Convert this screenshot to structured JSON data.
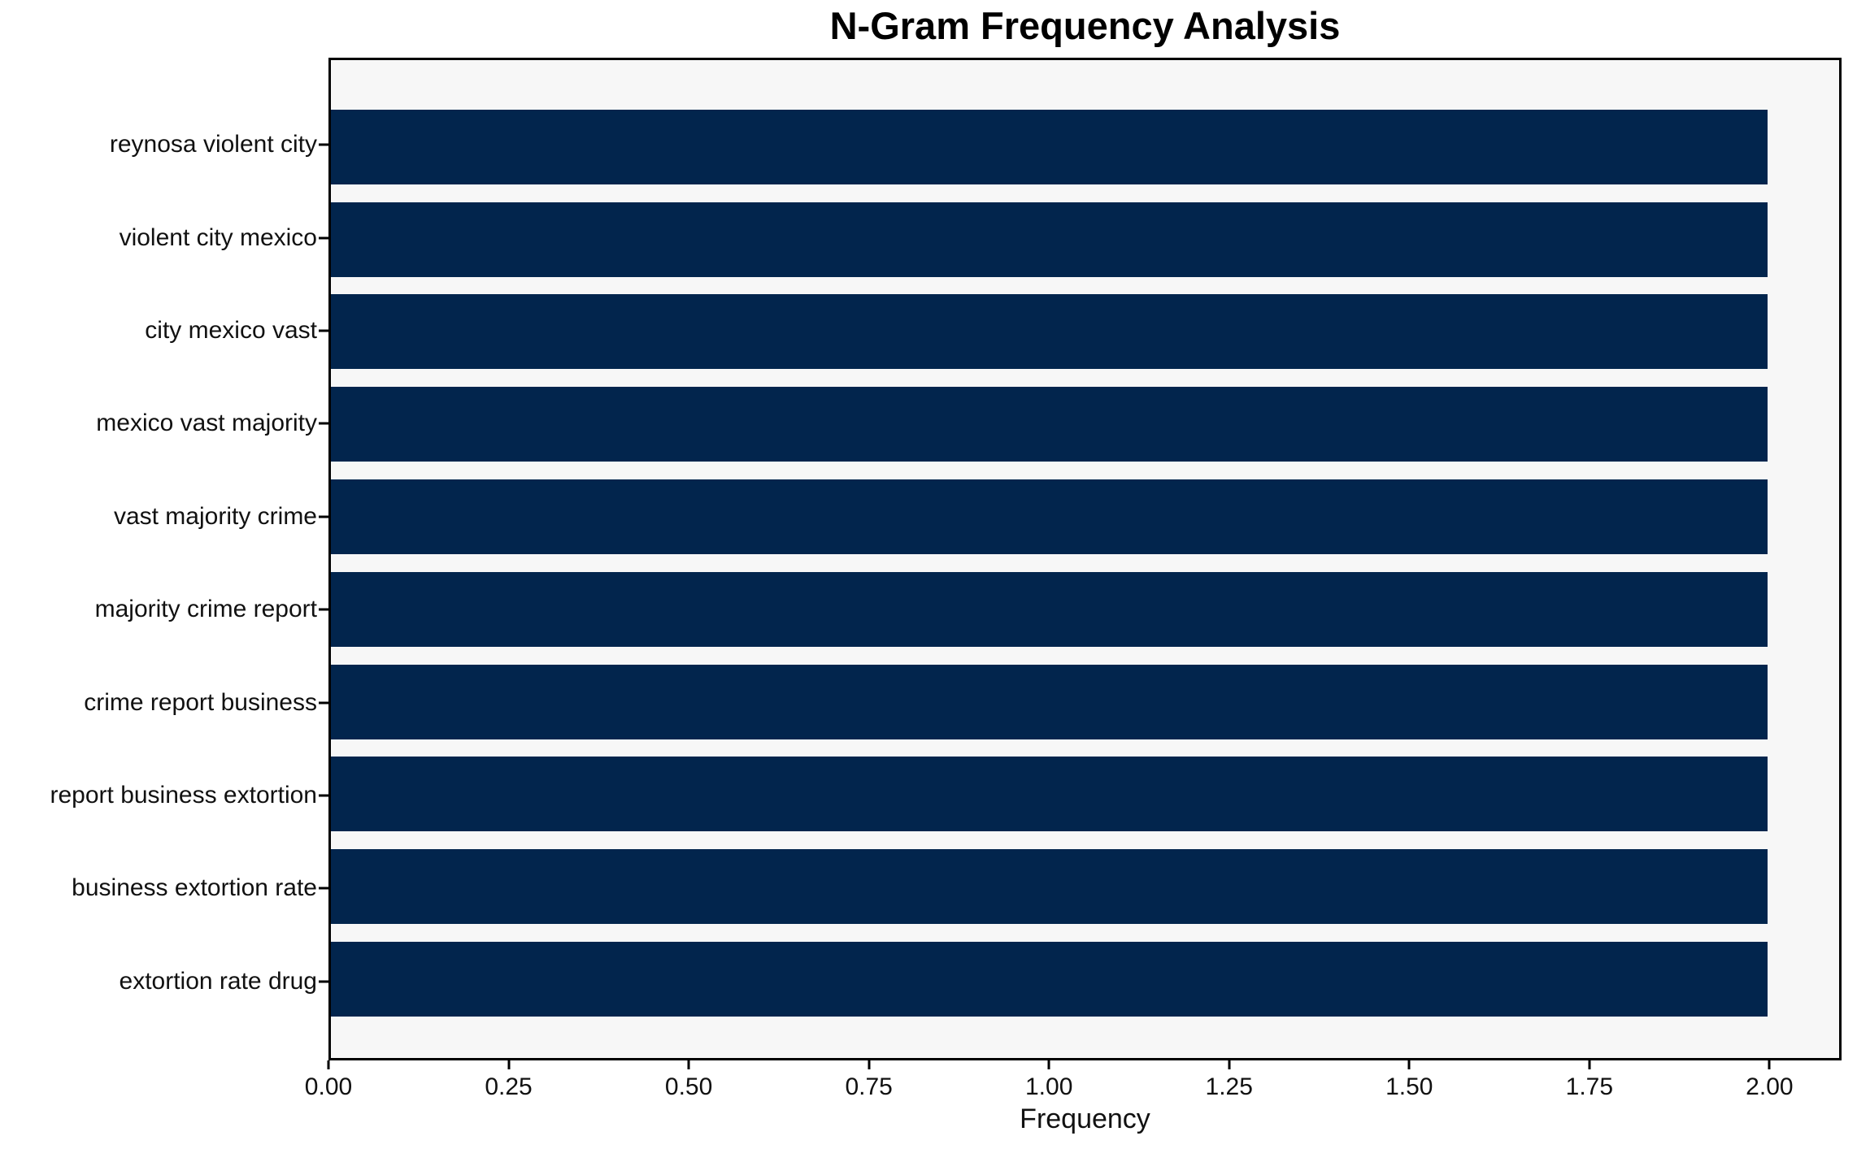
{
  "chart_data": {
    "type": "bar",
    "orientation": "horizontal",
    "title": "N-Gram Frequency Analysis",
    "xlabel": "Frequency",
    "ylabel": "",
    "categories": [
      "reynosa violent city",
      "violent city mexico",
      "city mexico vast",
      "mexico vast majority",
      "vast majority crime",
      "majority crime report",
      "crime report business",
      "report business extortion",
      "business extortion rate",
      "extortion rate drug"
    ],
    "values": [
      2,
      2,
      2,
      2,
      2,
      2,
      2,
      2,
      2,
      2
    ],
    "x_ticks": [
      "0.00",
      "0.25",
      "0.50",
      "0.75",
      "1.00",
      "1.25",
      "1.50",
      "1.75",
      "2.00"
    ],
    "x_tick_values": [
      0.0,
      0.25,
      0.5,
      0.75,
      1.0,
      1.25,
      1.5,
      1.75,
      2.0
    ],
    "xlim": [
      0,
      2.1
    ],
    "grid": false,
    "legend": null,
    "colors": {
      "bar": "#02254d",
      "plot_background": "#f7f7f7",
      "figure_background": "#ffffff",
      "spine": "#000000",
      "text": "#111111"
    }
  }
}
